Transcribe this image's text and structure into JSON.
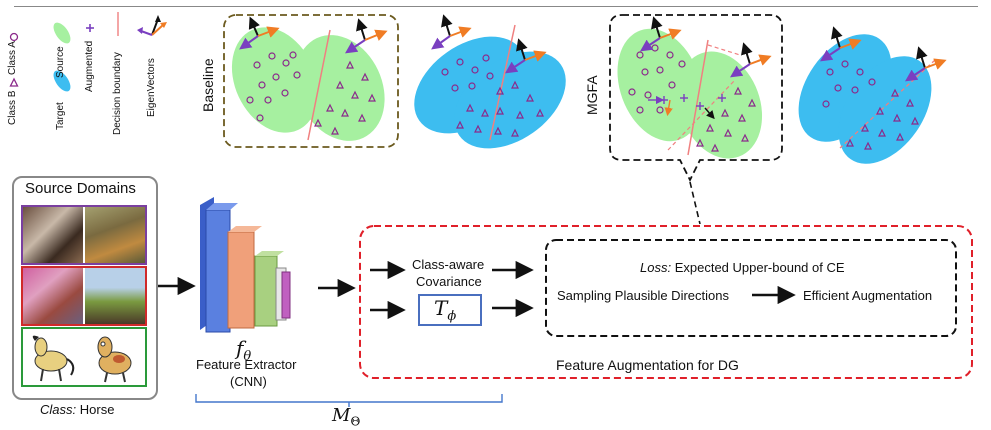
{
  "legend": {
    "class_a": "Class A",
    "class_b": "Class B",
    "source": "Source",
    "target": "Target",
    "augmented": "Augmented",
    "decision_boundary": "Decision boundary",
    "eigenvectors": "EigenVectors"
  },
  "panels": {
    "baseline_label": "Baseline",
    "mgfa_label": "MGFA"
  },
  "source_domains": {
    "title": "Source Domains",
    "class_caption_italic": "Class:",
    "class_caption_value": "Horse"
  },
  "extractor": {
    "symbol": "f",
    "subscript": "θ",
    "line1": "Feature Extractor",
    "line2": "(CNN)",
    "model_symbol": "M",
    "model_subscript": "Θ"
  },
  "augmentation": {
    "covariance_line1": "Class-aware",
    "covariance_line2": "Covariance",
    "transform_symbol": "T",
    "transform_subscript": "ϕ",
    "loss_italic": "Loss:",
    "loss_text": "Expected Upper-bound of CE",
    "sampling": "Sampling Plausible Directions",
    "efficient": "Efficient Augmentation",
    "region_label": "Feature Augmentation for DG"
  },
  "colors": {
    "source": "#a6f0a0",
    "target": "#3dbdf0",
    "class_marker": "#8b2a8b",
    "boundary": "#f08080",
    "eig_black": "#111111",
    "eig_orange": "#f07c24",
    "eig_purple": "#7a3fc0",
    "dashed_red": "#e0202a",
    "brace_blue": "#4477cc",
    "baseline_frame": "#6b5a1e"
  }
}
